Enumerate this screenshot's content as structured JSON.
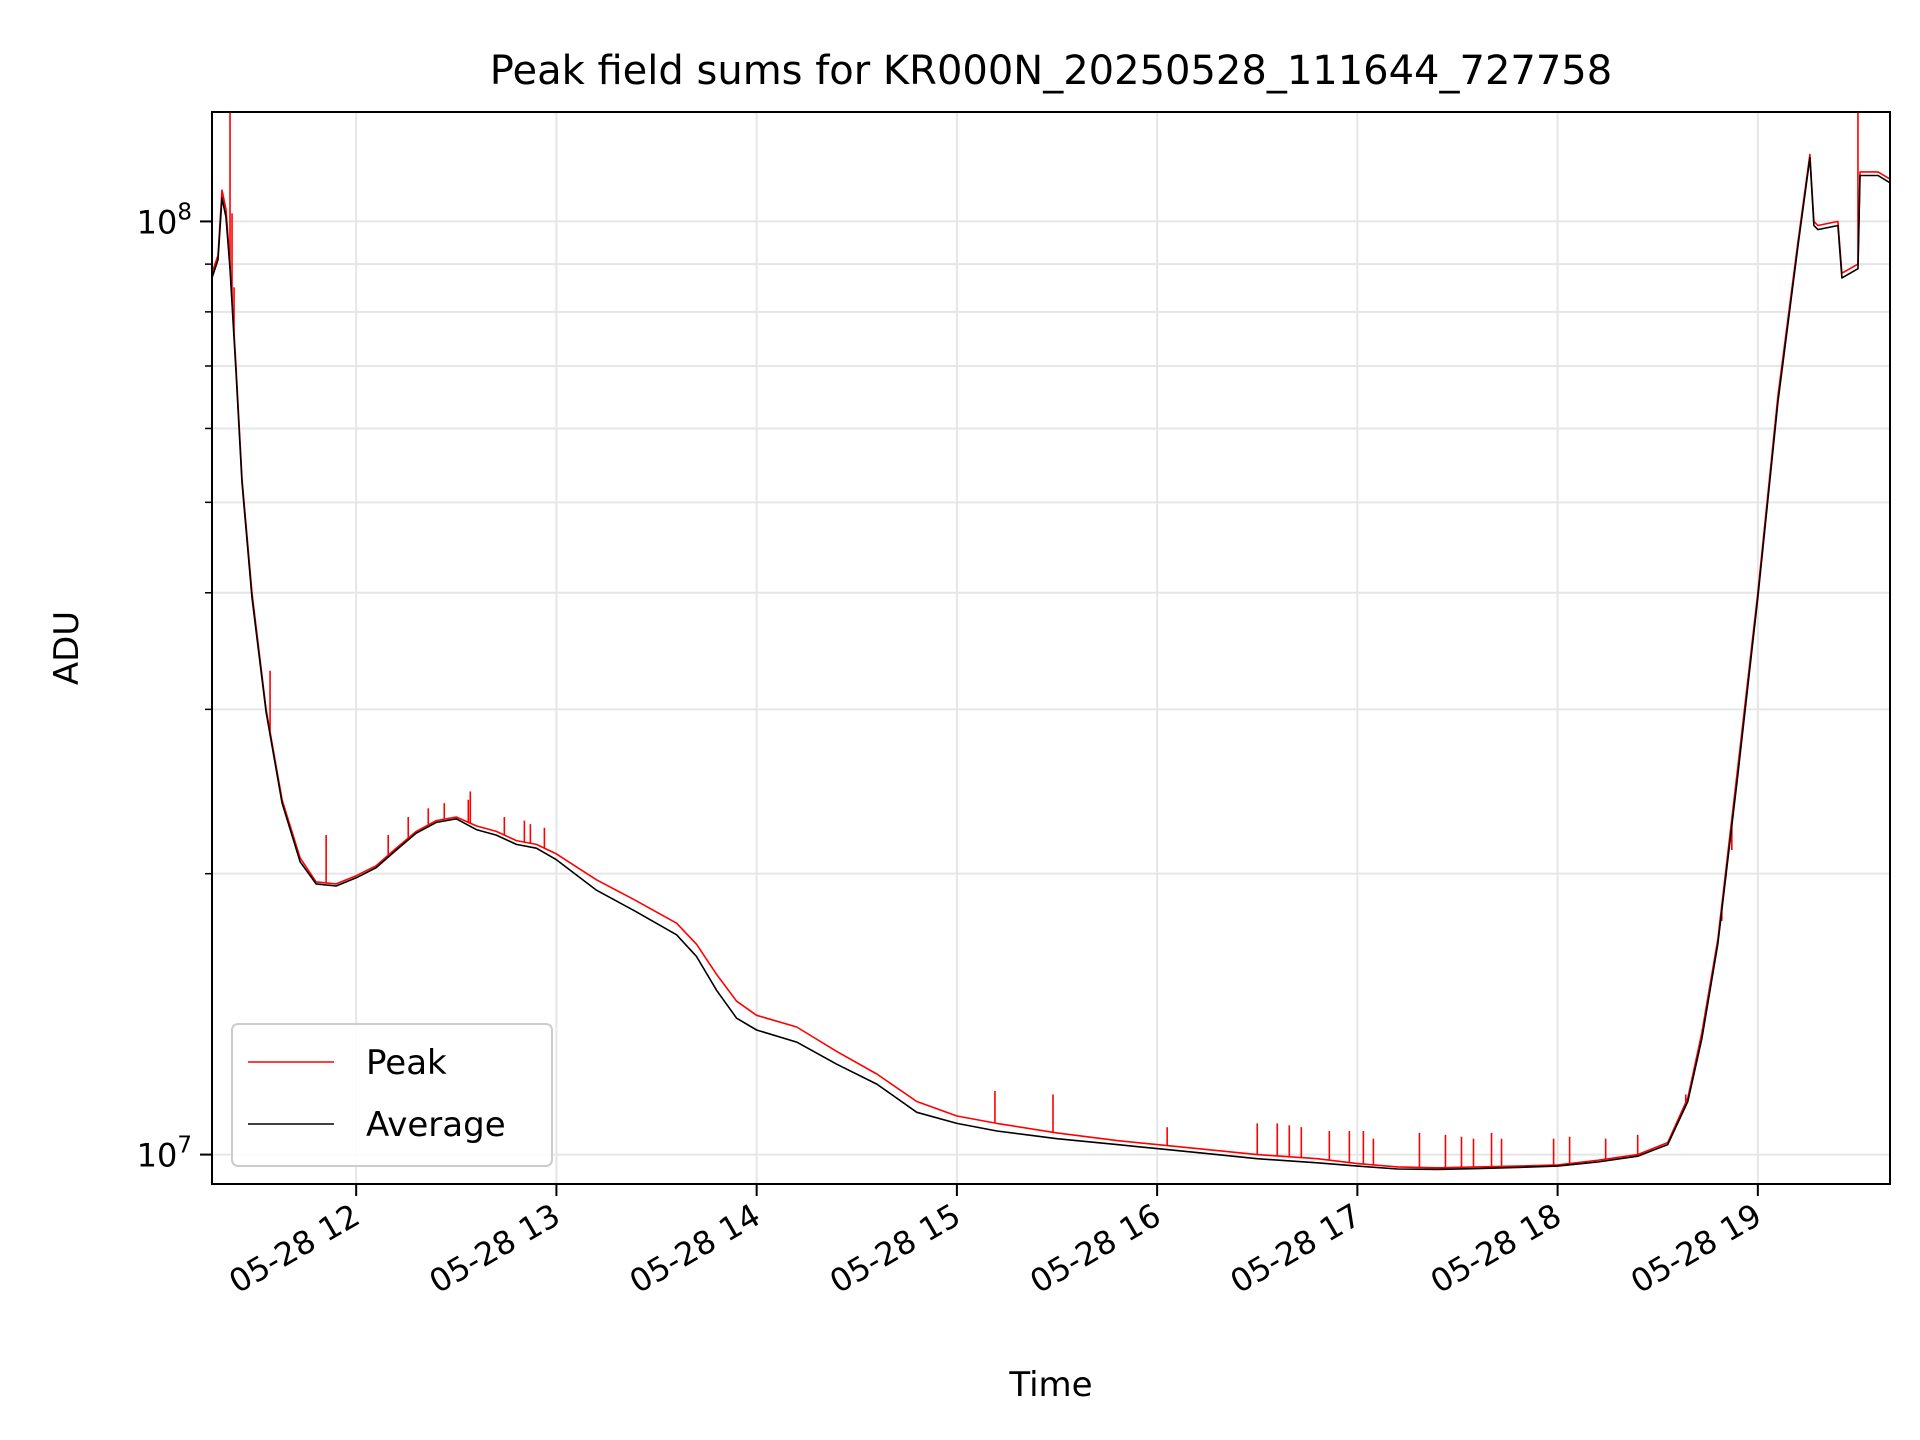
{
  "chart_data": {
    "type": "line",
    "title": "Peak field sums for KR000N_20250528_111644_727758",
    "xlabel": "Time",
    "ylabel": "ADU",
    "x_unit": "hours of day (2025-05-28)",
    "xlim": [
      11.28,
      19.66
    ],
    "ylim": [
      9300000,
      131000000
    ],
    "yscale": "log",
    "grid": true,
    "legend_placement": "lower-left",
    "x_ticks": [
      {
        "value": 12,
        "label": "05-28 12"
      },
      {
        "value": 13,
        "label": "05-28 13"
      },
      {
        "value": 14,
        "label": "05-28 14"
      },
      {
        "value": 15,
        "label": "05-28 15"
      },
      {
        "value": 16,
        "label": "05-28 16"
      },
      {
        "value": 17,
        "label": "05-28 17"
      },
      {
        "value": 18,
        "label": "05-28 18"
      },
      {
        "value": 19,
        "label": "05-28 19"
      }
    ],
    "y_major_ticks": [
      {
        "value": 10000000,
        "base": "10",
        "exp": "7"
      },
      {
        "value": 100000000,
        "base": "10",
        "exp": "8"
      }
    ],
    "y_minor_ticks": [
      20000000,
      30000000,
      40000000,
      50000000,
      60000000,
      70000000,
      80000000,
      90000000
    ],
    "series": [
      {
        "name": "Peak",
        "color": "#ff0000",
        "x": [
          11.28,
          11.31,
          11.33,
          11.35,
          11.37,
          11.4,
          11.43,
          11.48,
          11.55,
          11.63,
          11.72,
          11.8,
          11.9,
          12.0,
          12.1,
          12.2,
          12.3,
          12.4,
          12.5,
          12.6,
          12.7,
          12.8,
          12.9,
          13.0,
          13.2,
          13.4,
          13.6,
          13.7,
          13.8,
          13.9,
          14.0,
          14.2,
          14.4,
          14.6,
          14.8,
          15.0,
          15.2,
          15.5,
          15.8,
          16.0,
          16.2,
          16.5,
          16.8,
          17.0,
          17.2,
          17.4,
          17.6,
          17.8,
          18.0,
          18.2,
          18.4,
          18.55,
          18.65,
          18.72,
          18.8,
          18.9,
          19.0,
          19.1,
          19.2,
          19.26,
          19.28,
          19.3,
          19.4,
          19.42,
          19.5,
          19.51,
          19.6,
          19.66
        ],
        "y": [
          88000000,
          92000000,
          108000000,
          103000000,
          90000000,
          70000000,
          53000000,
          40000000,
          30000000,
          24000000,
          20800000,
          19600000,
          19500000,
          19900000,
          20400000,
          21300000,
          22200000,
          22800000,
          23000000,
          22500000,
          22200000,
          21700000,
          21500000,
          21000000,
          19700000,
          18700000,
          17700000,
          16800000,
          15600000,
          14600000,
          14100000,
          13700000,
          12900000,
          12200000,
          11400000,
          11000000,
          10800000,
          10550000,
          10350000,
          10250000,
          10150000,
          10000000,
          9900000,
          9780000,
          9700000,
          9680000,
          9700000,
          9720000,
          9750000,
          9860000,
          10000000,
          10300000,
          11500000,
          13500000,
          17000000,
          26000000,
          40000000,
          65000000,
          95000000,
          118000000,
          100000000,
          99000000,
          100000000,
          88000000,
          90000000,
          113000000,
          113000000,
          111000000
        ],
        "spikes": [
          {
            "x": 11.37,
            "y": 142000000
          },
          {
            "x": 11.38,
            "y": 102000000
          },
          {
            "x": 11.39,
            "y": 85000000
          },
          {
            "x": 11.57,
            "y": 33000000
          },
          {
            "x": 11.85,
            "y": 22000000
          },
          {
            "x": 12.16,
            "y": 22000000
          },
          {
            "x": 12.26,
            "y": 23000000
          },
          {
            "x": 12.36,
            "y": 23500000
          },
          {
            "x": 12.44,
            "y": 23800000
          },
          {
            "x": 12.56,
            "y": 24000000
          },
          {
            "x": 12.57,
            "y": 24500000
          },
          {
            "x": 12.74,
            "y": 23000000
          },
          {
            "x": 12.84,
            "y": 22800000
          },
          {
            "x": 12.87,
            "y": 22600000
          },
          {
            "x": 12.94,
            "y": 22400000
          },
          {
            "x": 15.19,
            "y": 11700000
          },
          {
            "x": 15.48,
            "y": 11600000
          },
          {
            "x": 16.05,
            "y": 10700000
          },
          {
            "x": 16.5,
            "y": 10800000
          },
          {
            "x": 16.6,
            "y": 10800000
          },
          {
            "x": 16.66,
            "y": 10750000
          },
          {
            "x": 16.72,
            "y": 10700000
          },
          {
            "x": 16.86,
            "y": 10600000
          },
          {
            "x": 16.96,
            "y": 10600000
          },
          {
            "x": 17.03,
            "y": 10600000
          },
          {
            "x": 17.08,
            "y": 10400000
          },
          {
            "x": 17.31,
            "y": 10550000
          },
          {
            "x": 17.44,
            "y": 10500000
          },
          {
            "x": 17.52,
            "y": 10450000
          },
          {
            "x": 17.58,
            "y": 10400000
          },
          {
            "x": 17.67,
            "y": 10550000
          },
          {
            "x": 17.72,
            "y": 10400000
          },
          {
            "x": 17.98,
            "y": 10400000
          },
          {
            "x": 18.06,
            "y": 10450000
          },
          {
            "x": 18.24,
            "y": 10400000
          },
          {
            "x": 18.4,
            "y": 10500000
          },
          {
            "x": 18.64,
            "y": 11600000
          },
          {
            "x": 18.82,
            "y": 17800000
          },
          {
            "x": 18.84,
            "y": 19800000
          },
          {
            "x": 18.87,
            "y": 21200000
          },
          {
            "x": 19.0,
            "y": 40000000
          },
          {
            "x": 19.5,
            "y": 136000000
          }
        ]
      },
      {
        "name": "Average",
        "color": "#000000",
        "x": [
          11.28,
          11.31,
          11.33,
          11.35,
          11.37,
          11.4,
          11.43,
          11.48,
          11.55,
          11.63,
          11.72,
          11.8,
          11.9,
          12.0,
          12.1,
          12.2,
          12.3,
          12.4,
          12.5,
          12.6,
          12.7,
          12.8,
          12.9,
          13.0,
          13.2,
          13.4,
          13.6,
          13.7,
          13.8,
          13.9,
          14.0,
          14.2,
          14.4,
          14.6,
          14.8,
          15.0,
          15.2,
          15.5,
          15.8,
          16.0,
          16.2,
          16.5,
          16.8,
          17.0,
          17.2,
          17.4,
          17.6,
          17.8,
          18.0,
          18.2,
          18.4,
          18.55,
          18.65,
          18.72,
          18.8,
          18.9,
          19.0,
          19.1,
          19.2,
          19.26,
          19.28,
          19.3,
          19.4,
          19.42,
          19.5,
          19.51,
          19.6,
          19.66
        ],
        "y": [
          87000000,
          91000000,
          106000000,
          101000000,
          89000000,
          69000000,
          52500000,
          39500000,
          29800000,
          23800000,
          20600000,
          19500000,
          19400000,
          19800000,
          20300000,
          21200000,
          22100000,
          22700000,
          22900000,
          22300000,
          22000000,
          21500000,
          21300000,
          20700000,
          19200000,
          18200000,
          17200000,
          16300000,
          15000000,
          14000000,
          13600000,
          13200000,
          12500000,
          11900000,
          11100000,
          10800000,
          10600000,
          10400000,
          10250000,
          10150000,
          10050000,
          9900000,
          9800000,
          9720000,
          9650000,
          9640000,
          9660000,
          9690000,
          9720000,
          9820000,
          9960000,
          10250000,
          11400000,
          13300000,
          16800000,
          25500000,
          39500000,
          64000000,
          94000000,
          117000000,
          99000000,
          98000000,
          99000000,
          87000000,
          89000000,
          112000000,
          112000000,
          110000000
        ]
      }
    ]
  }
}
